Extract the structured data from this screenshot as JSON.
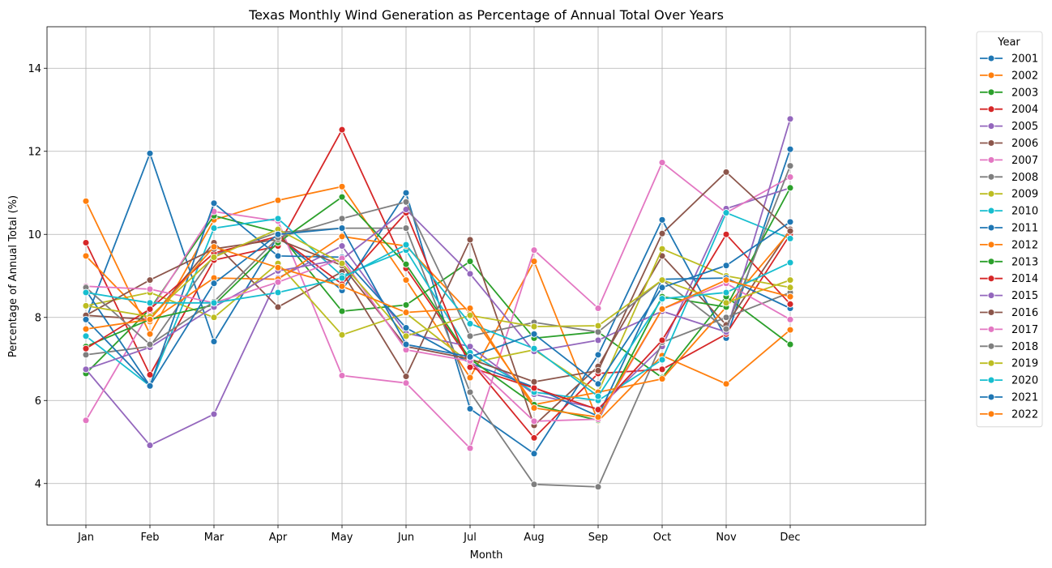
{
  "chart_data": {
    "type": "line",
    "title": "Texas Monthly Wind Generation as Percentage of Annual Total Over Years",
    "xlabel": "Month",
    "ylabel": "Percentage of Annual Total (%)",
    "categories": [
      "Jan",
      "Feb",
      "Mar",
      "Apr",
      "May",
      "Jun",
      "Jul",
      "Aug",
      "Sep",
      "Oct",
      "Nov",
      "Dec"
    ],
    "ylim": [
      3,
      15
    ],
    "yticks": [
      4,
      6,
      8,
      10,
      12,
      14
    ],
    "grid": true,
    "legend": {
      "title": "Year",
      "placement": "outside-right"
    },
    "series": [
      {
        "name": "2001",
        "color": "#1f77b4",
        "values": [
          7.95,
          11.95,
          7.42,
          9.95,
          8.65,
          11.0,
          5.8,
          4.72,
          7.1,
          10.35,
          7.5,
          12.05
        ]
      },
      {
        "name": "2002",
        "color": "#ff7f0e",
        "values": [
          10.8,
          7.6,
          10.35,
          10.82,
          11.15,
          8.9,
          6.55,
          9.35,
          5.5,
          7.08,
          6.4,
          7.7
        ]
      },
      {
        "name": "2003",
        "color": "#2ca02c",
        "values": [
          6.65,
          8.2,
          10.45,
          10.05,
          8.15,
          8.3,
          9.35,
          7.5,
          7.65,
          6.55,
          8.5,
          7.35
        ]
      },
      {
        "name": "2004",
        "color": "#d62728",
        "values": [
          9.8,
          6.62,
          9.38,
          9.72,
          12.52,
          9.18,
          6.95,
          5.1,
          6.65,
          6.75,
          7.6,
          10.0
        ]
      },
      {
        "name": "2005",
        "color": "#9467bd",
        "values": [
          6.75,
          4.92,
          5.67,
          8.95,
          9.72,
          7.62,
          7.3,
          6.15,
          5.8,
          7.3,
          10.62,
          11.12
        ]
      },
      {
        "name": "2006",
        "color": "#8c564b",
        "values": [
          8.05,
          7.95,
          9.8,
          8.25,
          9.1,
          6.58,
          9.87,
          5.4,
          6.82,
          9.48,
          7.82,
          10.12
        ]
      },
      {
        "name": "2007",
        "color": "#e377c2",
        "values": [
          5.52,
          8.15,
          10.55,
          10.32,
          6.6,
          6.42,
          4.85,
          9.62,
          8.22,
          11.73,
          10.52,
          11.38
        ]
      },
      {
        "name": "2008",
        "color": "#7f7f7f",
        "values": [
          7.1,
          7.3,
          9.5,
          10.05,
          10.15,
          10.15,
          6.2,
          3.98,
          3.92,
          7.4,
          8.0,
          8.6
        ]
      },
      {
        "name": "2009",
        "color": "#bcbd22",
        "values": [
          8.28,
          8.6,
          8.0,
          9.3,
          7.58,
          8.1,
          6.9,
          7.22,
          6.2,
          9.65,
          9.0,
          8.72
        ]
      },
      {
        "name": "2010",
        "color": "#17becf",
        "values": [
          7.55,
          6.35,
          10.15,
          10.38,
          9.0,
          9.62,
          7.15,
          6.2,
          6.0,
          6.98,
          10.52,
          9.9
        ]
      },
      {
        "name": "2011",
        "color": "#1f77b4",
        "values": [
          8.65,
          6.35,
          10.75,
          9.48,
          9.45,
          7.75,
          6.9,
          6.32,
          5.62,
          8.92,
          8.95,
          8.22
        ]
      },
      {
        "name": "2012",
        "color": "#ff7f0e",
        "values": [
          9.48,
          7.9,
          8.95,
          8.92,
          9.95,
          9.72,
          8.1,
          5.9,
          6.2,
          6.52,
          8.25,
          10.08
        ]
      },
      {
        "name": "2013",
        "color": "#2ca02c",
        "values": [
          7.3,
          7.95,
          8.3,
          9.8,
          10.9,
          9.28,
          7.0,
          5.9,
          5.52,
          8.5,
          8.25,
          11.12
        ]
      },
      {
        "name": "2014",
        "color": "#d62728",
        "values": [
          7.25,
          8.2,
          9.55,
          9.95,
          8.8,
          10.52,
          6.8,
          6.3,
          5.78,
          7.45,
          10.0,
          8.32
        ]
      },
      {
        "name": "2015",
        "color": "#9467bd",
        "values": [
          6.75,
          7.28,
          8.25,
          9.12,
          9.4,
          10.6,
          9.05,
          7.18,
          7.45,
          8.15,
          7.65,
          12.78
        ]
      },
      {
        "name": "2016",
        "color": "#8c564b",
        "values": [
          8.05,
          8.9,
          9.65,
          9.88,
          9.25,
          7.3,
          7.0,
          6.45,
          6.72,
          10.02,
          11.5,
          10.08
        ]
      },
      {
        "name": "2017",
        "color": "#e377c2",
        "values": [
          8.75,
          8.68,
          8.35,
          8.85,
          9.42,
          7.22,
          6.95,
          5.5,
          5.55,
          8.2,
          8.82,
          7.95
        ]
      },
      {
        "name": "2018",
        "color": "#7f7f7f",
        "values": [
          8.72,
          7.35,
          8.38,
          9.92,
          10.38,
          10.78,
          7.55,
          7.88,
          7.65,
          8.9,
          7.72,
          11.65
        ]
      },
      {
        "name": "2019",
        "color": "#bcbd22",
        "values": [
          8.28,
          8.02,
          9.45,
          10.12,
          9.3,
          7.55,
          8.05,
          7.78,
          7.8,
          8.9,
          8.35,
          8.9
        ]
      },
      {
        "name": "2020",
        "color": "#17becf",
        "values": [
          8.6,
          8.35,
          8.35,
          8.6,
          8.95,
          9.75,
          7.85,
          7.25,
          6.1,
          8.45,
          8.6,
          9.32
        ]
      },
      {
        "name": "2021",
        "color": "#1f77b4",
        "values": [
          7.95,
          6.35,
          8.82,
          10.0,
          10.15,
          7.35,
          7.05,
          7.6,
          6.4,
          8.72,
          9.25,
          10.3
        ]
      },
      {
        "name": "2022",
        "color": "#ff7f0e",
        "values": [
          7.72,
          7.95,
          9.7,
          9.2,
          8.75,
          8.12,
          8.22,
          5.82,
          5.6,
          8.2,
          8.9,
          8.5
        ]
      }
    ]
  }
}
